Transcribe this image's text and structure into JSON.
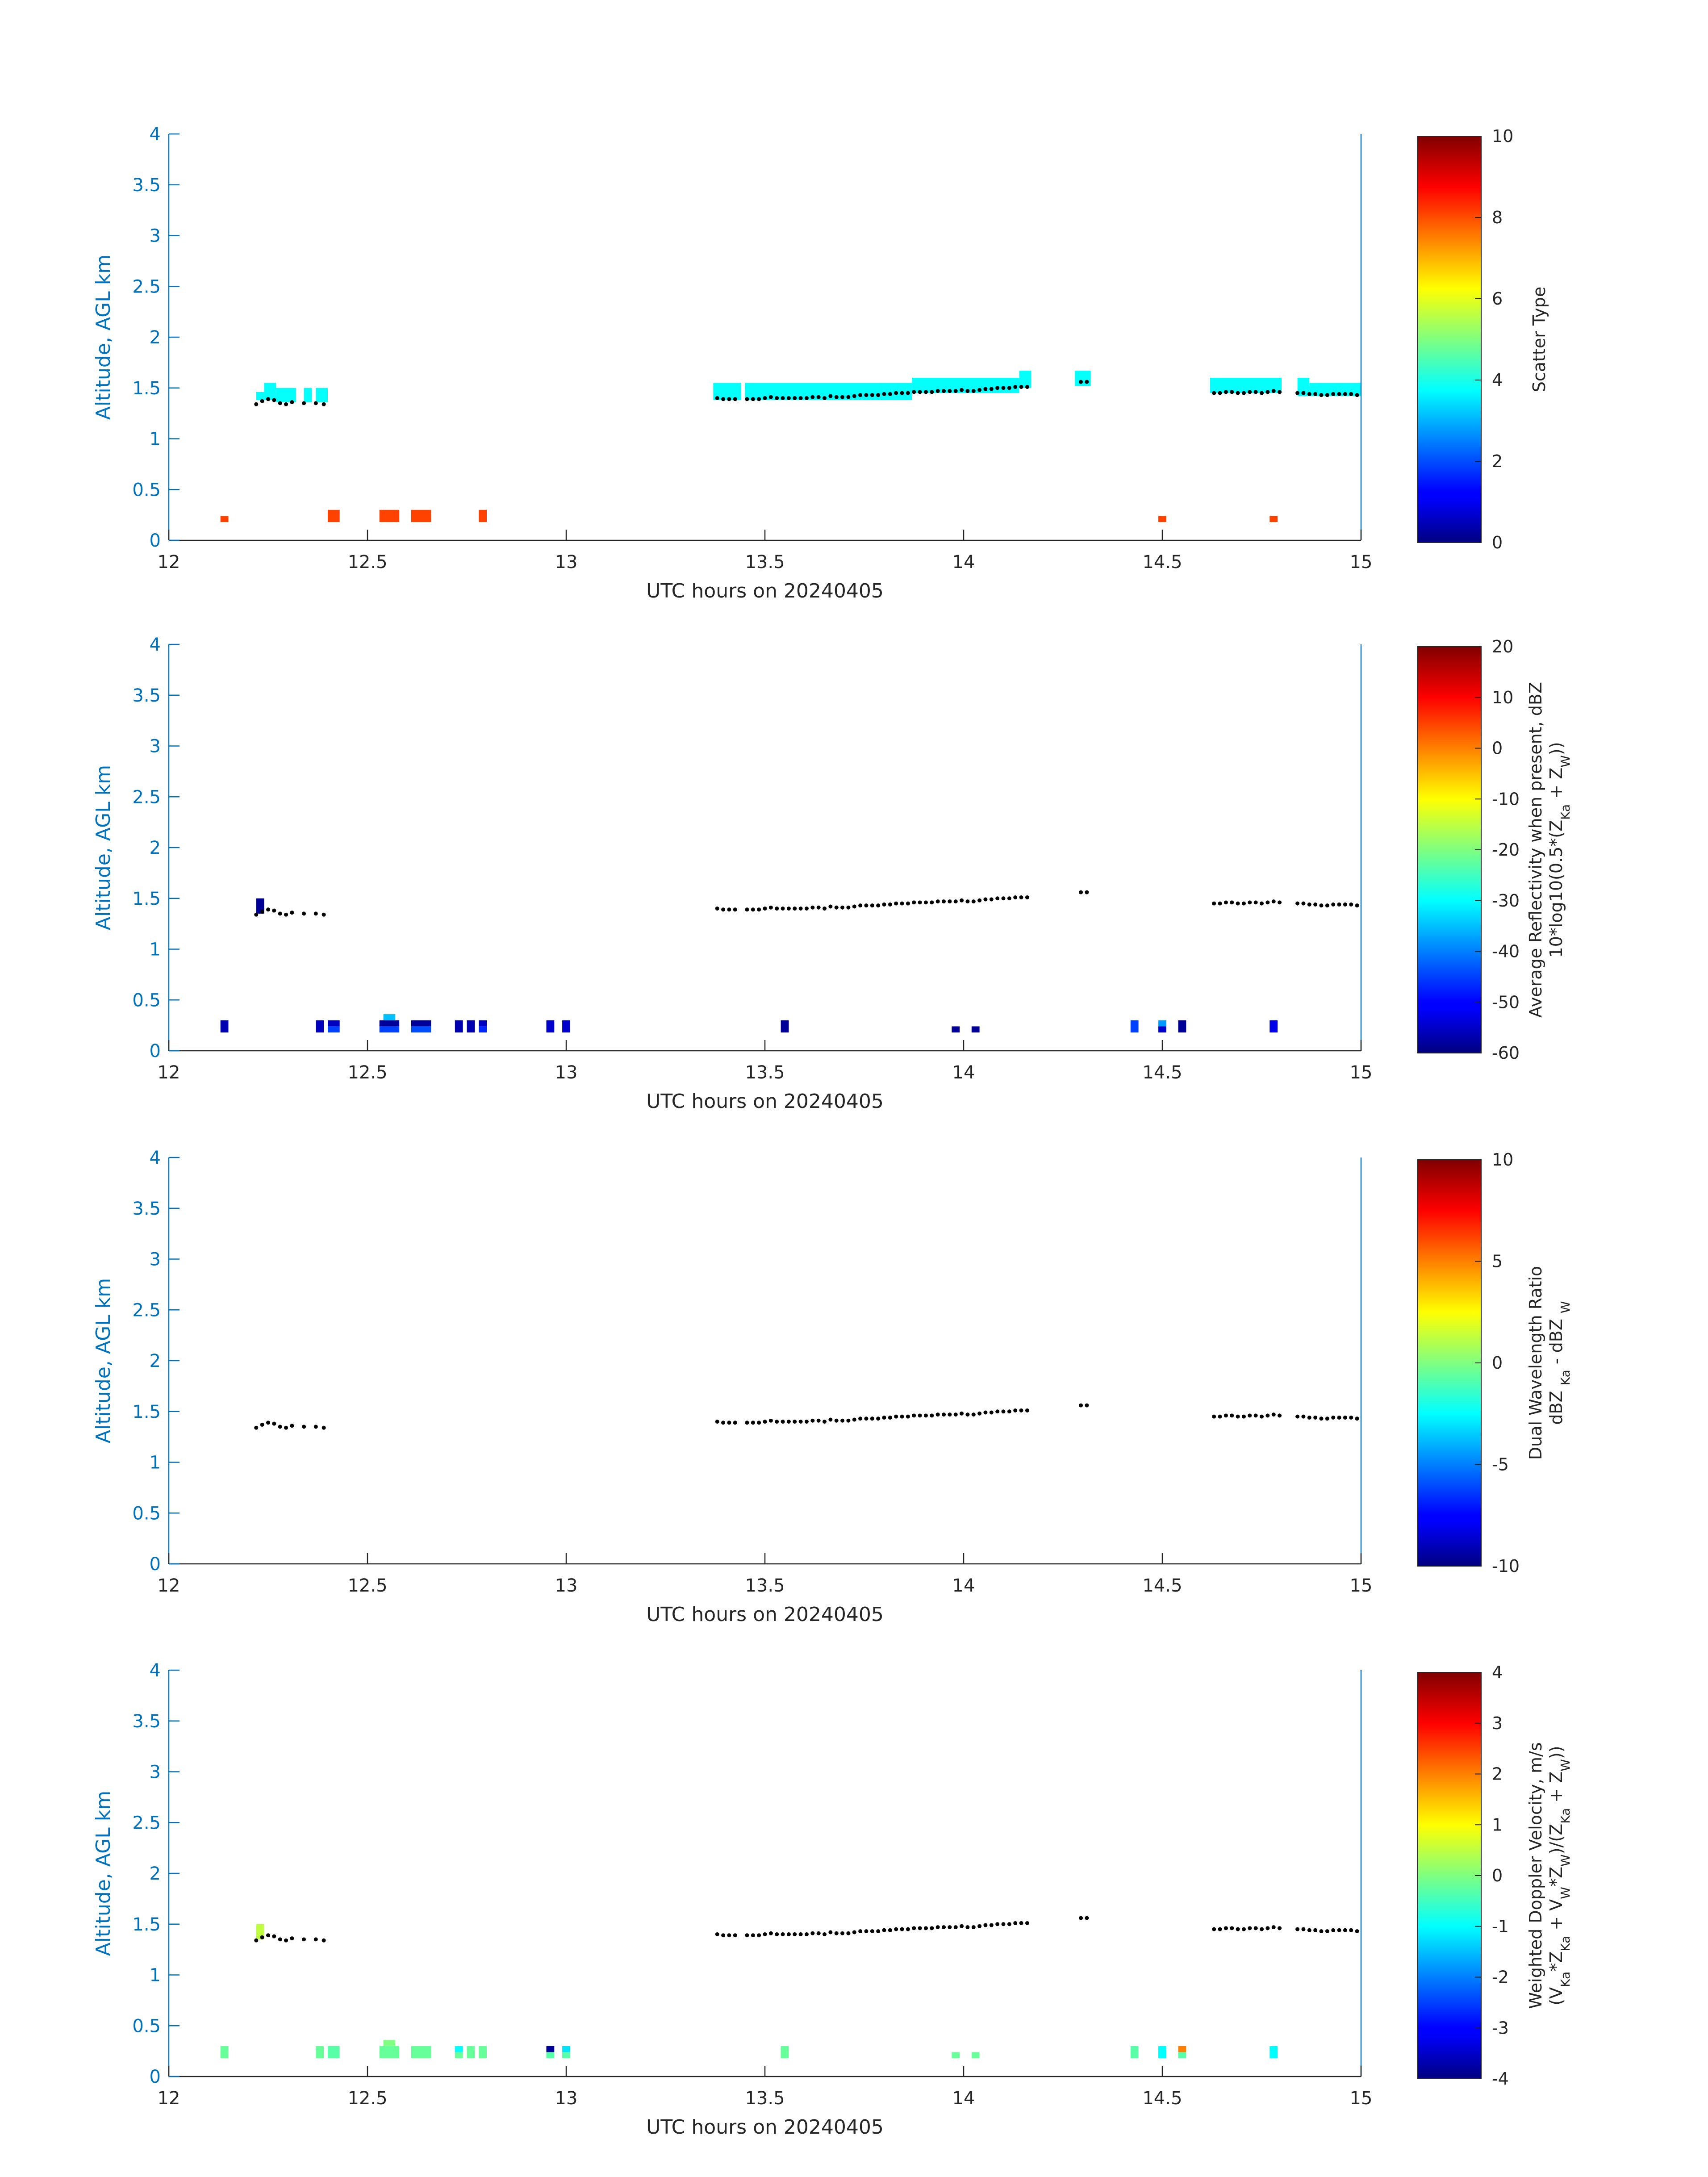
{
  "figure": {
    "xlabel": "UTC hours on 20240405",
    "ylabel": "Altitude, AGL km",
    "x_ticks": [
      "12",
      "12.5",
      "13",
      "13.5",
      "14",
      "14.5",
      "15"
    ],
    "y_ticks": [
      "0",
      "0.5",
      "1",
      "1.5",
      "2",
      "2.5",
      "3",
      "3.5",
      "4"
    ]
  },
  "chart_data": [
    {
      "type": "heatmap",
      "xlabel": "UTC hours on 20240405",
      "ylabel": "Altitude, AGL km",
      "xlim": [
        12,
        15
      ],
      "ylim": [
        0,
        4
      ],
      "colormap": "jet",
      "colorbar": {
        "label_lines": [
          "Scatter Type"
        ],
        "range": [
          0,
          10
        ],
        "ticks": [
          "10",
          "8",
          "6",
          "4",
          "2",
          "0"
        ]
      },
      "cells": [
        {
          "x0": 12.13,
          "x1": 12.15,
          "y0": 0.18,
          "y1": 0.24,
          "v": 8.1
        },
        {
          "x0": 12.4,
          "x1": 12.43,
          "y0": 0.18,
          "y1": 0.3,
          "v": 8.1
        },
        {
          "x0": 12.53,
          "x1": 12.58,
          "y0": 0.18,
          "y1": 0.3,
          "v": 8.1
        },
        {
          "x0": 12.61,
          "x1": 12.66,
          "y0": 0.18,
          "y1": 0.3,
          "v": 8.1
        },
        {
          "x0": 12.78,
          "x1": 12.8,
          "y0": 0.18,
          "y1": 0.3,
          "v": 8.1
        },
        {
          "x0": 14.49,
          "x1": 14.51,
          "y0": 0.18,
          "y1": 0.24,
          "v": 8.1
        },
        {
          "x0": 14.77,
          "x1": 14.79,
          "y0": 0.18,
          "y1": 0.24,
          "v": 8.1
        },
        {
          "x0": 12.22,
          "x1": 12.24,
          "y0": 1.38,
          "y1": 1.46,
          "v": 3.8
        },
        {
          "x0": 12.24,
          "x1": 12.27,
          "y0": 1.38,
          "y1": 1.55,
          "v": 3.8
        },
        {
          "x0": 12.27,
          "x1": 12.32,
          "y0": 1.36,
          "y1": 1.5,
          "v": 3.8
        },
        {
          "x0": 12.34,
          "x1": 12.36,
          "y0": 1.36,
          "y1": 1.5,
          "v": 3.8
        },
        {
          "x0": 12.37,
          "x1": 12.4,
          "y0": 1.36,
          "y1": 1.5,
          "v": 3.8
        },
        {
          "x0": 13.37,
          "x1": 13.44,
          "y0": 1.38,
          "y1": 1.55,
          "v": 3.8
        },
        {
          "x0": 13.45,
          "x1": 13.87,
          "y0": 1.38,
          "y1": 1.55,
          "v": 3.8
        },
        {
          "x0": 13.87,
          "x1": 14.14,
          "y0": 1.45,
          "y1": 1.6,
          "v": 3.8
        },
        {
          "x0": 14.14,
          "x1": 14.17,
          "y0": 1.5,
          "y1": 1.67,
          "v": 3.8
        },
        {
          "x0": 14.28,
          "x1": 14.32,
          "y0": 1.52,
          "y1": 1.67,
          "v": 3.8
        },
        {
          "x0": 14.62,
          "x1": 14.8,
          "y0": 1.45,
          "y1": 1.6,
          "v": 3.8
        },
        {
          "x0": 14.84,
          "x1": 14.87,
          "y0": 1.42,
          "y1": 1.6,
          "v": 3.8
        },
        {
          "x0": 14.87,
          "x1": 15.0,
          "y0": 1.42,
          "y1": 1.55,
          "v": 3.8
        }
      ]
    },
    {
      "type": "heatmap",
      "xlabel": "UTC hours on 20240405",
      "ylabel": "Altitude, AGL km",
      "xlim": [
        12,
        15
      ],
      "ylim": [
        0,
        4
      ],
      "colormap": "jet",
      "colorbar": {
        "label_lines": [
          "Average Reflectivity when present, dBZ",
          "10*log10(0.5*(ZKa + ZW))"
        ],
        "range": [
          -60,
          20
        ],
        "ticks": [
          "20",
          "10",
          "0",
          "-10",
          "-20",
          "-30",
          "-40",
          "-50",
          "-60"
        ]
      },
      "cells": [
        {
          "x0": 12.13,
          "x1": 12.15,
          "y0": 0.18,
          "y1": 0.3,
          "v": -56
        },
        {
          "x0": 12.22,
          "x1": 12.24,
          "y0": 1.35,
          "y1": 1.5,
          "v": -58
        },
        {
          "x0": 12.37,
          "x1": 12.39,
          "y0": 0.18,
          "y1": 0.3,
          "v": -55
        },
        {
          "x0": 12.4,
          "x1": 12.43,
          "y0": 0.24,
          "y1": 0.3,
          "v": -55
        },
        {
          "x0": 12.4,
          "x1": 12.43,
          "y0": 0.18,
          "y1": 0.24,
          "v": -45
        },
        {
          "x0": 12.54,
          "x1": 12.57,
          "y0": 0.3,
          "y1": 0.36,
          "v": -35
        },
        {
          "x0": 12.53,
          "x1": 12.58,
          "y0": 0.24,
          "y1": 0.3,
          "v": -58
        },
        {
          "x0": 12.53,
          "x1": 12.58,
          "y0": 0.18,
          "y1": 0.24,
          "v": -45
        },
        {
          "x0": 12.61,
          "x1": 12.66,
          "y0": 0.24,
          "y1": 0.3,
          "v": -58
        },
        {
          "x0": 12.61,
          "x1": 12.66,
          "y0": 0.18,
          "y1": 0.24,
          "v": -44
        },
        {
          "x0": 12.72,
          "x1": 12.74,
          "y0": 0.18,
          "y1": 0.3,
          "v": -56
        },
        {
          "x0": 12.75,
          "x1": 12.77,
          "y0": 0.18,
          "y1": 0.3,
          "v": -56
        },
        {
          "x0": 12.78,
          "x1": 12.8,
          "y0": 0.24,
          "y1": 0.3,
          "v": -55
        },
        {
          "x0": 12.78,
          "x1": 12.8,
          "y0": 0.18,
          "y1": 0.24,
          "v": -47
        },
        {
          "x0": 12.95,
          "x1": 12.97,
          "y0": 0.18,
          "y1": 0.3,
          "v": -54
        },
        {
          "x0": 12.99,
          "x1": 13.01,
          "y0": 0.18,
          "y1": 0.3,
          "v": -54
        },
        {
          "x0": 13.54,
          "x1": 13.56,
          "y0": 0.18,
          "y1": 0.3,
          "v": -58
        },
        {
          "x0": 13.97,
          "x1": 13.99,
          "y0": 0.18,
          "y1": 0.24,
          "v": -58
        },
        {
          "x0": 14.02,
          "x1": 14.04,
          "y0": 0.18,
          "y1": 0.24,
          "v": -58
        },
        {
          "x0": 14.42,
          "x1": 14.44,
          "y0": 0.18,
          "y1": 0.3,
          "v": -45
        },
        {
          "x0": 14.49,
          "x1": 14.51,
          "y0": 0.24,
          "y1": 0.3,
          "v": -38
        },
        {
          "x0": 14.49,
          "x1": 14.51,
          "y0": 0.18,
          "y1": 0.24,
          "v": -54
        },
        {
          "x0": 14.54,
          "x1": 14.56,
          "y0": 0.18,
          "y1": 0.3,
          "v": -58
        },
        {
          "x0": 14.77,
          "x1": 14.79,
          "y0": 0.18,
          "y1": 0.3,
          "v": -52
        }
      ]
    },
    {
      "type": "heatmap",
      "xlabel": "UTC hours on 20240405",
      "ylabel": "Altitude, AGL km",
      "xlim": [
        12,
        15
      ],
      "ylim": [
        0,
        4
      ],
      "colormap": "jet",
      "colorbar": {
        "label_lines": [
          "Dual Wavelength Ratio",
          "dBZ Ka - dBZ W"
        ],
        "range": [
          -10,
          10
        ],
        "ticks": [
          "10",
          "5",
          "0",
          "-5",
          "-10"
        ]
      },
      "cells": []
    },
    {
      "type": "heatmap",
      "xlabel": "UTC hours on 20240405",
      "ylabel": "Altitude, AGL km",
      "xlim": [
        12,
        15
      ],
      "ylim": [
        0,
        4
      ],
      "colormap": "jet",
      "colorbar": {
        "label_lines": [
          "Weighted Doppler Velocity, m/s",
          "(VKa*ZKa + VW*ZW)/(ZKa + ZW))"
        ],
        "range": [
          -4,
          4
        ],
        "ticks": [
          "4",
          "3",
          "2",
          "1",
          "0",
          "-1",
          "-2",
          "-3",
          "-4"
        ]
      },
      "cells": [
        {
          "x0": 12.13,
          "x1": 12.15,
          "y0": 0.18,
          "y1": 0.3,
          "v": -0.2
        },
        {
          "x0": 12.22,
          "x1": 12.24,
          "y0": 1.35,
          "y1": 1.5,
          "v": 0.5
        },
        {
          "x0": 12.37,
          "x1": 12.39,
          "y0": 0.18,
          "y1": 0.3,
          "v": -0.2
        },
        {
          "x0": 12.4,
          "x1": 12.43,
          "y0": 0.18,
          "y1": 0.3,
          "v": -0.3
        },
        {
          "x0": 12.54,
          "x1": 12.57,
          "y0": 0.3,
          "y1": 0.36,
          "v": 0.0
        },
        {
          "x0": 12.53,
          "x1": 12.58,
          "y0": 0.18,
          "y1": 0.3,
          "v": -0.2
        },
        {
          "x0": 12.61,
          "x1": 12.66,
          "y0": 0.18,
          "y1": 0.3,
          "v": -0.2
        },
        {
          "x0": 12.72,
          "x1": 12.74,
          "y0": 0.24,
          "y1": 0.3,
          "v": -1.0
        },
        {
          "x0": 12.72,
          "x1": 12.74,
          "y0": 0.18,
          "y1": 0.24,
          "v": -0.2
        },
        {
          "x0": 12.75,
          "x1": 12.77,
          "y0": 0.18,
          "y1": 0.3,
          "v": -0.2
        },
        {
          "x0": 12.78,
          "x1": 12.8,
          "y0": 0.18,
          "y1": 0.3,
          "v": -0.2
        },
        {
          "x0": 12.95,
          "x1": 12.97,
          "y0": 0.24,
          "y1": 0.3,
          "v": -3.8
        },
        {
          "x0": 12.95,
          "x1": 12.97,
          "y0": 0.18,
          "y1": 0.24,
          "v": -0.3
        },
        {
          "x0": 12.99,
          "x1": 13.01,
          "y0": 0.24,
          "y1": 0.3,
          "v": -1.2
        },
        {
          "x0": 12.99,
          "x1": 13.01,
          "y0": 0.18,
          "y1": 0.24,
          "v": -0.3
        },
        {
          "x0": 13.54,
          "x1": 13.56,
          "y0": 0.18,
          "y1": 0.3,
          "v": -0.2
        },
        {
          "x0": 13.97,
          "x1": 13.99,
          "y0": 0.18,
          "y1": 0.24,
          "v": -0.2
        },
        {
          "x0": 14.02,
          "x1": 14.04,
          "y0": 0.18,
          "y1": 0.24,
          "v": -0.2
        },
        {
          "x0": 14.42,
          "x1": 14.44,
          "y0": 0.18,
          "y1": 0.3,
          "v": -0.3
        },
        {
          "x0": 14.49,
          "x1": 14.51,
          "y0": 0.18,
          "y1": 0.3,
          "v": -1.0
        },
        {
          "x0": 14.54,
          "x1": 14.56,
          "y0": 0.24,
          "y1": 0.3,
          "v": 2.0
        },
        {
          "x0": 14.54,
          "x1": 14.56,
          "y0": 0.18,
          "y1": 0.24,
          "v": -0.3
        },
        {
          "x0": 14.77,
          "x1": 14.79,
          "y0": 0.18,
          "y1": 0.3,
          "v": -1.0
        }
      ]
    }
  ],
  "cloud_base_dots": {
    "x": [
      12.22,
      12.235,
      12.25,
      12.265,
      12.28,
      12.295,
      12.31,
      12.34,
      12.37,
      12.39,
      13.38,
      13.395,
      13.41,
      13.425,
      13.455,
      13.47,
      13.485,
      13.5,
      13.515,
      13.53,
      13.545,
      13.56,
      13.575,
      13.59,
      13.605,
      13.62,
      13.635,
      13.65,
      13.665,
      13.68,
      13.695,
      13.71,
      13.725,
      13.74,
      13.755,
      13.77,
      13.785,
      13.8,
      13.815,
      13.83,
      13.845,
      13.86,
      13.875,
      13.89,
      13.905,
      13.92,
      13.935,
      13.95,
      13.965,
      13.98,
      13.995,
      14.01,
      14.025,
      14.04,
      14.055,
      14.07,
      14.085,
      14.1,
      14.115,
      14.13,
      14.145,
      14.16,
      14.295,
      14.31,
      14.63,
      14.645,
      14.66,
      14.675,
      14.69,
      14.705,
      14.72,
      14.735,
      14.75,
      14.765,
      14.78,
      14.795,
      14.84,
      14.855,
      14.87,
      14.885,
      14.9,
      14.915,
      14.93,
      14.945,
      14.96,
      14.975,
      14.99
    ],
    "y": [
      1.34,
      1.37,
      1.39,
      1.38,
      1.35,
      1.34,
      1.36,
      1.35,
      1.35,
      1.34,
      1.4,
      1.39,
      1.39,
      1.39,
      1.39,
      1.39,
      1.39,
      1.4,
      1.41,
      1.4,
      1.4,
      1.4,
      1.4,
      1.4,
      1.4,
      1.41,
      1.41,
      1.4,
      1.42,
      1.41,
      1.41,
      1.41,
      1.42,
      1.43,
      1.43,
      1.43,
      1.43,
      1.44,
      1.44,
      1.45,
      1.45,
      1.45,
      1.46,
      1.46,
      1.46,
      1.46,
      1.47,
      1.47,
      1.47,
      1.47,
      1.48,
      1.47,
      1.47,
      1.48,
      1.49,
      1.49,
      1.5,
      1.5,
      1.5,
      1.51,
      1.51,
      1.51,
      1.56,
      1.56,
      1.45,
      1.45,
      1.46,
      1.46,
      1.45,
      1.45,
      1.46,
      1.46,
      1.45,
      1.46,
      1.47,
      1.46,
      1.45,
      1.45,
      1.44,
      1.44,
      1.43,
      1.43,
      1.44,
      1.44,
      1.44,
      1.44,
      1.43
    ]
  }
}
